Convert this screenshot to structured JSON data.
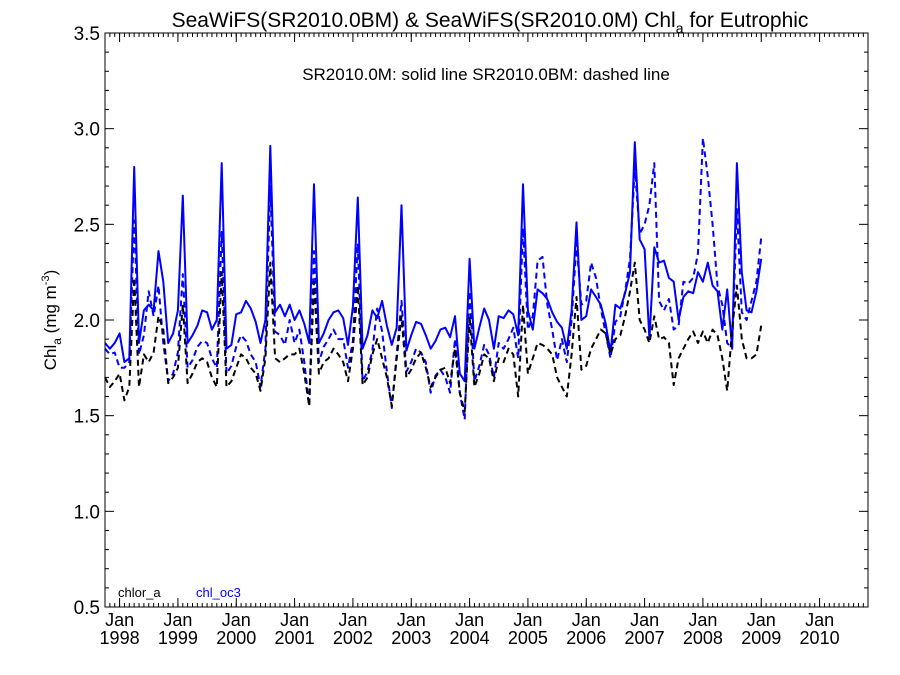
{
  "chart_data": {
    "type": "line",
    "title": {
      "prefix": "SeaWiFS(SR2010.0BM) & SeaWiFS(SR2010.0M)  Chl",
      "subscript": "a",
      "suffix": " for Eutrophic"
    },
    "ylabel": {
      "prefix": "Chl",
      "subscript": "a",
      "unit": " (mg m",
      "unit_sup": "-3",
      "unit_end": ")"
    },
    "annotation": "SR2010.0M: solid line   SR2010.0BM: dashed line",
    "legend": [
      {
        "label": "chlor_a",
        "color": "#000000"
      },
      {
        "label": "chl_oc3",
        "color": "#0000ff"
      }
    ],
    "ylim": [
      0.5,
      3.5
    ],
    "xlim": [
      1997.75,
      2010.83
    ],
    "yticks": [
      "0.5",
      "1.0",
      "1.5",
      "2.0",
      "2.5",
      "3.0",
      "3.5"
    ],
    "xticks": [
      {
        "month": "Jan",
        "year": "1998",
        "x": 1998
      },
      {
        "month": "Jan",
        "year": "1999",
        "x": 1999
      },
      {
        "month": "Jan",
        "year": "2000",
        "x": 2000
      },
      {
        "month": "Jan",
        "year": "2001",
        "x": 2001
      },
      {
        "month": "Jan",
        "year": "2002",
        "x": 2002
      },
      {
        "month": "Jan",
        "year": "2003",
        "x": 2003
      },
      {
        "month": "Jan",
        "year": "2004",
        "x": 2004
      },
      {
        "month": "Jan",
        "year": "2005",
        "x": 2005
      },
      {
        "month": "Jan",
        "year": "2006",
        "x": 2006
      },
      {
        "month": "Jan",
        "year": "2007",
        "x": 2007
      },
      {
        "month": "Jan",
        "year": "2008",
        "x": 2008
      },
      {
        "month": "Jan",
        "year": "2009",
        "x": 2009
      },
      {
        "month": "Jan",
        "year": "2010",
        "x": 2010
      }
    ],
    "x_start": 1997.75,
    "x_step": 0.08333,
    "series": [
      {
        "key": "oc3_M",
        "color": "#0000ff",
        "dash": false,
        "values": [
          1.88,
          1.85,
          1.88,
          1.93,
          1.78,
          1.8,
          2.8,
          1.88,
          2.05,
          2.08,
          2.05,
          2.36,
          2.2,
          1.88,
          1.93,
          2.05,
          2.65,
          1.88,
          1.92,
          1.97,
          2.05,
          2.04,
          1.95,
          2.0,
          2.82,
          1.85,
          1.87,
          2.03,
          2.04,
          2.1,
          2.06,
          1.99,
          1.88,
          2.0,
          2.91,
          2.04,
          2.08,
          2.02,
          2.08,
          2.0,
          2.05,
          1.98,
          1.88,
          2.71,
          1.88,
          1.93,
          2.0,
          2.04,
          2.05,
          2.01,
          1.87,
          2.07,
          2.64,
          1.85,
          1.92,
          2.05,
          2.01,
          2.1,
          1.97,
          1.87,
          1.96,
          2.6,
          1.84,
          1.92,
          1.99,
          1.98,
          1.92,
          1.85,
          1.89,
          1.95,
          1.96,
          1.91,
          2.02,
          1.72,
          1.68,
          2.32,
          1.85,
          1.96,
          2.06,
          2.0,
          1.85,
          2.02,
          2.01,
          2.05,
          2.03,
          1.92,
          2.71,
          2.05,
          1.95,
          2.16,
          2.14,
          2.11,
          2.04,
          1.99,
          1.96,
          1.85,
          2.05,
          2.51,
          2.0,
          2.02,
          2.16,
          2.12,
          2.08,
          1.98,
          1.83,
          2.08,
          2.06,
          2.14,
          2.25,
          2.93,
          2.42,
          2.37,
          1.9,
          2.38,
          2.3,
          2.31,
          2.22,
          2.2,
          2.0,
          2.12,
          2.15,
          2.14,
          2.25,
          2.2,
          2.3,
          2.18,
          2.15,
          1.95,
          2.16,
          1.85,
          2.82,
          2.25,
          2.05,
          2.04,
          2.15,
          2.32
        ]
      },
      {
        "key": "oc3_BM",
        "color": "#0000ff",
        "dash": true,
        "values": [
          1.85,
          1.82,
          1.83,
          1.75,
          1.75,
          1.78,
          2.52,
          1.82,
          1.92,
          2.15,
          2.02,
          2.18,
          1.88,
          1.68,
          1.72,
          1.83,
          2.24,
          1.75,
          1.79,
          1.86,
          1.89,
          1.88,
          1.8,
          1.75,
          2.46,
          1.72,
          1.76,
          1.86,
          1.92,
          1.89,
          1.82,
          1.78,
          1.65,
          1.85,
          2.7,
          1.94,
          1.92,
          1.87,
          2.0,
          1.88,
          1.95,
          1.78,
          1.55,
          2.36,
          1.78,
          1.86,
          1.9,
          1.95,
          1.9,
          1.9,
          1.75,
          1.89,
          2.4,
          1.68,
          1.73,
          1.84,
          2.06,
          1.94,
          1.73,
          1.54,
          1.82,
          2.1,
          1.73,
          1.78,
          1.85,
          1.83,
          1.78,
          1.62,
          1.71,
          1.74,
          1.7,
          1.62,
          1.9,
          1.62,
          1.48,
          2.15,
          1.68,
          1.76,
          1.87,
          1.82,
          1.7,
          1.88,
          1.85,
          1.9,
          1.96,
          1.8,
          2.48,
          1.95,
          2.02,
          2.31,
          2.33,
          2.08,
          1.95,
          1.79,
          1.9,
          1.78,
          2.0,
          2.4,
          2.08,
          2.1,
          2.3,
          2.22,
          2.06,
          1.93,
          1.8,
          1.99,
          2.02,
          2.15,
          2.32,
          2.8,
          2.45,
          2.5,
          2.6,
          2.82,
          2.1,
          2.05,
          2.11,
          1.95,
          1.97,
          2.2,
          2.19,
          2.22,
          2.35,
          2.95,
          2.75,
          2.5,
          2.18,
          2.08,
          1.88,
          1.85,
          2.58,
          2.04,
          2.0,
          2.1,
          2.2,
          2.43
        ]
      },
      {
        "key": "chlor_M",
        "color": "#000000",
        "dash": false,
        "values": []
      },
      {
        "key": "chlor_BM",
        "color": "#000000",
        "dash": true,
        "values": [
          1.7,
          1.65,
          1.68,
          1.72,
          1.58,
          1.65,
          2.22,
          1.65,
          1.82,
          1.78,
          1.83,
          2.02,
          1.95,
          1.67,
          1.7,
          1.75,
          2.08,
          1.67,
          1.72,
          1.78,
          1.8,
          1.78,
          1.7,
          1.65,
          2.25,
          1.65,
          1.68,
          1.75,
          1.82,
          1.8,
          1.75,
          1.72,
          1.63,
          1.8,
          2.3,
          1.8,
          1.78,
          1.8,
          1.82,
          1.82,
          1.85,
          1.72,
          1.55,
          2.2,
          1.72,
          1.78,
          1.8,
          1.85,
          1.82,
          1.78,
          1.68,
          1.85,
          2.18,
          1.66,
          1.7,
          1.82,
          1.9,
          1.8,
          1.7,
          1.55,
          1.8,
          2.02,
          1.7,
          1.74,
          1.8,
          1.83,
          1.75,
          1.65,
          1.7,
          1.74,
          1.75,
          1.67,
          1.85,
          1.62,
          1.52,
          2.02,
          1.65,
          1.72,
          1.82,
          1.8,
          1.68,
          1.8,
          1.78,
          1.85,
          1.82,
          1.6,
          2.08,
          1.72,
          1.8,
          1.88,
          1.87,
          1.85,
          1.82,
          1.7,
          1.65,
          1.6,
          1.82,
          2.12,
          1.74,
          1.76,
          1.85,
          1.9,
          1.95,
          1.93,
          1.82,
          1.9,
          1.92,
          2.02,
          2.15,
          2.3,
          2.0,
          1.95,
          1.88,
          2.02,
          1.9,
          1.91,
          1.88,
          1.66,
          1.8,
          1.85,
          1.9,
          1.94,
          1.88,
          1.94,
          1.88,
          1.95,
          1.92,
          1.8,
          1.63,
          1.95,
          2.18,
          1.9,
          1.8,
          1.8,
          1.82,
          1.97
        ]
      }
    ]
  }
}
